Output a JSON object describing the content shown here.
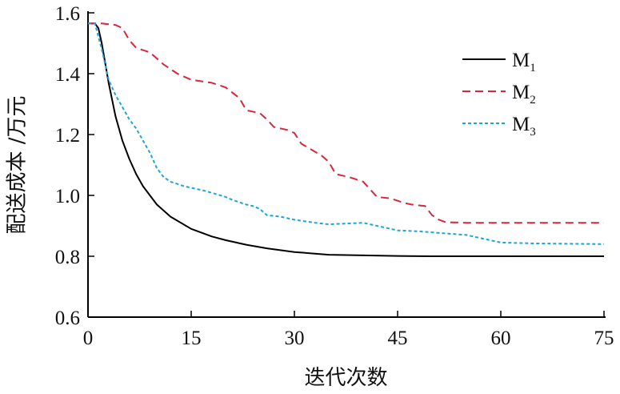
{
  "chart_data": {
    "type": "line",
    "xlabel": "迭代次数",
    "ylabel": "配送成本 /万元",
    "xlim": [
      0,
      75
    ],
    "ylim": [
      0.6,
      1.6
    ],
    "xticks": [
      "0",
      "15",
      "30",
      "45",
      "60",
      "75"
    ],
    "yticks": [
      "0.6",
      "0.8",
      "1.0",
      "1.2",
      "1.4",
      "1.6"
    ],
    "grid": false,
    "legend_position": "top-right",
    "series": [
      {
        "name": "M",
        "subscript": "1",
        "color": "#000000",
        "dash": "solid",
        "x": [
          0,
          1,
          1.5,
          2,
          3,
          4,
          5,
          6,
          7,
          8,
          10,
          12,
          15,
          18,
          20,
          23,
          26,
          30,
          35,
          40,
          45,
          50,
          60,
          75
        ],
        "y": [
          1.565,
          1.565,
          1.55,
          1.5,
          1.37,
          1.26,
          1.18,
          1.12,
          1.07,
          1.03,
          0.97,
          0.93,
          0.89,
          0.865,
          0.853,
          0.838,
          0.826,
          0.814,
          0.805,
          0.803,
          0.801,
          0.8,
          0.8,
          0.8
        ]
      },
      {
        "name": "M",
        "subscript": "2",
        "color": "#d7263d",
        "dash": "10,6",
        "x": [
          0,
          2,
          4,
          5,
          6,
          7,
          9,
          11,
          13,
          15,
          18,
          20,
          22,
          23,
          25,
          26,
          27,
          29,
          30,
          31,
          34,
          35,
          36,
          38,
          40,
          41,
          42,
          44,
          46,
          47,
          49,
          50,
          51,
          52,
          55,
          60,
          65,
          75
        ],
        "y": [
          1.565,
          1.565,
          1.56,
          1.55,
          1.51,
          1.485,
          1.47,
          1.43,
          1.4,
          1.38,
          1.37,
          1.355,
          1.32,
          1.28,
          1.27,
          1.25,
          1.225,
          1.215,
          1.205,
          1.17,
          1.13,
          1.11,
          1.07,
          1.06,
          1.045,
          1.02,
          0.995,
          0.99,
          0.975,
          0.97,
          0.965,
          0.935,
          0.92,
          0.912,
          0.91,
          0.91,
          0.91,
          0.91
        ]
      },
      {
        "name": "M",
        "subscript": "3",
        "color": "#1da5d9",
        "dash": "4,3",
        "x": [
          0,
          1,
          2,
          3,
          4,
          5,
          6,
          7,
          8,
          9,
          10,
          11,
          12,
          14,
          17,
          20,
          21,
          23,
          24,
          25,
          26,
          28,
          30,
          33,
          35,
          40,
          43,
          45,
          48,
          52,
          55,
          58,
          60,
          65,
          75
        ],
        "y": [
          1.565,
          1.565,
          1.48,
          1.38,
          1.33,
          1.29,
          1.25,
          1.22,
          1.18,
          1.14,
          1.09,
          1.06,
          1.045,
          1.03,
          1.015,
          0.995,
          0.985,
          0.97,
          0.965,
          0.955,
          0.935,
          0.93,
          0.92,
          0.91,
          0.905,
          0.91,
          0.895,
          0.885,
          0.882,
          0.875,
          0.87,
          0.855,
          0.845,
          0.842,
          0.84
        ]
      }
    ]
  }
}
